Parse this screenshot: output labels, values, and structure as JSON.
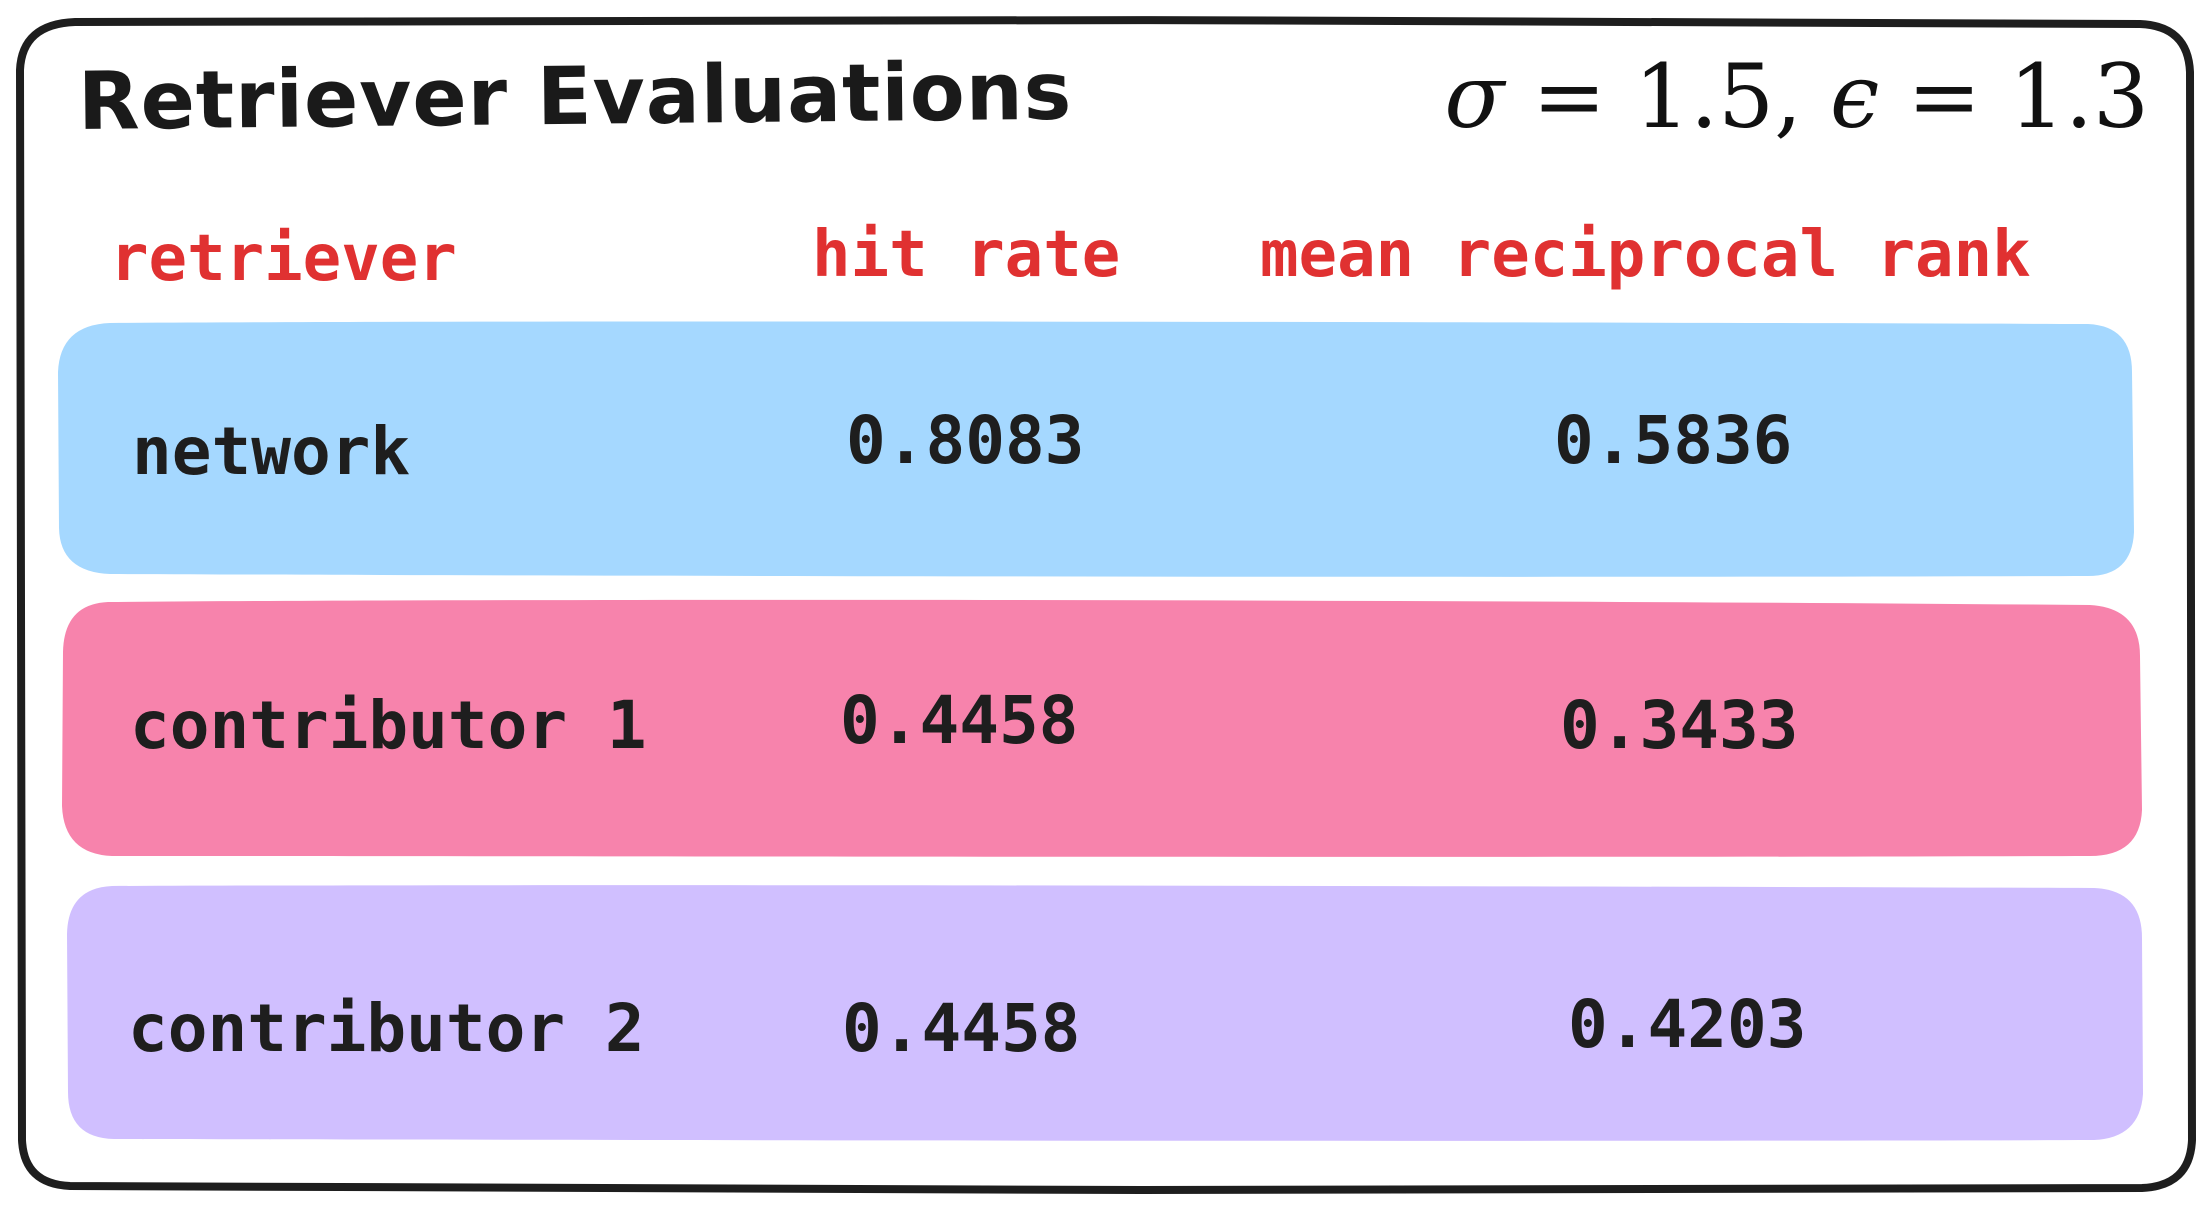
{
  "title": "Retriever Evaluations",
  "params": {
    "sigma_symbol": "σ",
    "sigma_value": "1.5",
    "epsilon_symbol": "ϵ",
    "epsilon_value": "1.3"
  },
  "columns": [
    "retriever",
    "hit rate",
    "mean reciprocal rank"
  ],
  "rows": [
    {
      "retriever": "network",
      "hit_rate": "0.8083",
      "mrr": "0.5836",
      "color": "#a5d8ff"
    },
    {
      "retriever": "contributor 1",
      "hit_rate": "0.4458",
      "mrr": "0.3433",
      "color": "#f783ac"
    },
    {
      "retriever": "contributor 2",
      "hit_rate": "0.4458",
      "mrr": "0.4203",
      "color": "#d0bfff"
    }
  ],
  "colors": {
    "header_text": "#e03131",
    "frame_stroke": "#1e1e1e",
    "body_text": "#1e1e1e"
  }
}
